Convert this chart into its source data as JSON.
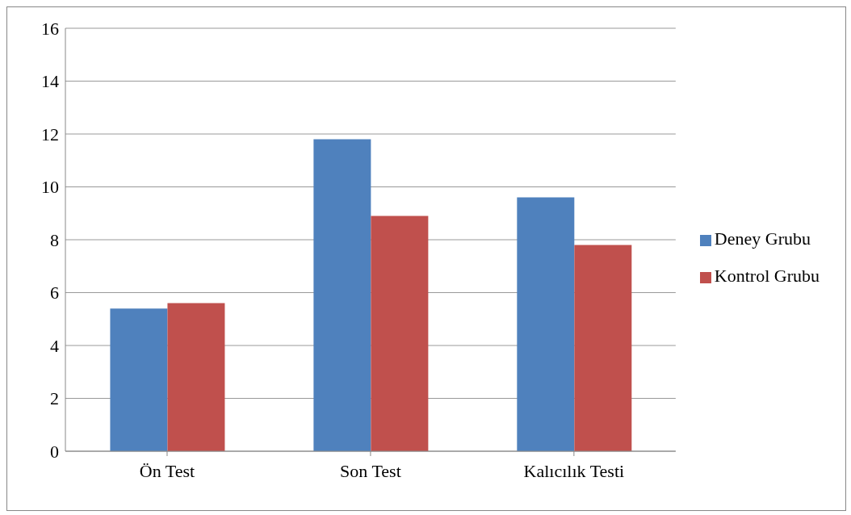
{
  "chart_data": {
    "type": "bar",
    "categories": [
      "Ön Test",
      "Son Test",
      "Kalıcılık Testi"
    ],
    "series": [
      {
        "name": "Deney Grubu",
        "color": "#4f81bd",
        "values": [
          5.4,
          11.8,
          9.6
        ]
      },
      {
        "name": "Kontrol Grubu",
        "color": "#c0504d",
        "values": [
          5.6,
          8.9,
          7.8
        ]
      }
    ],
    "ylim": [
      0,
      16
    ],
    "yticks": [
      0,
      2,
      4,
      6,
      8,
      10,
      12,
      14,
      16
    ],
    "grid": "y",
    "legend": "right"
  }
}
